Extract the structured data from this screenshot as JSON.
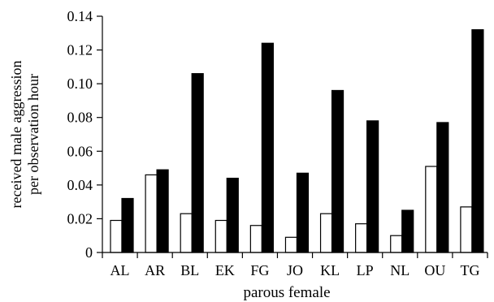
{
  "chart_data": {
    "type": "bar",
    "categories": [
      "AL",
      "AR",
      "BL",
      "EK",
      "FG",
      "JO",
      "KL",
      "LP",
      "NL",
      "OU",
      "TG"
    ],
    "series": [
      {
        "values": [
          0.019,
          0.046,
          0.023,
          0.019,
          0.016,
          0.009,
          0.023,
          0.017,
          0.01,
          0.051,
          0.027
        ]
      },
      {
        "values": [
          0.032,
          0.049,
          0.106,
          0.044,
          0.124,
          0.047,
          0.096,
          0.078,
          0.025,
          0.077,
          0.132
        ]
      }
    ],
    "series_colors": [
      "#ffffff",
      "#000000"
    ],
    "xlabel": "parous female",
    "ylabel_lines": [
      "received male aggression",
      "per observation hour"
    ],
    "ylim": [
      0,
      0.14
    ],
    "yticks": [
      {
        "value": 0,
        "label": "0"
      },
      {
        "value": 0.02,
        "label": "0.02"
      },
      {
        "value": 0.04,
        "label": "0.04"
      },
      {
        "value": 0.06,
        "label": "0.06"
      },
      {
        "value": 0.08,
        "label": "0.08"
      },
      {
        "value": 0.1,
        "label": "0.10"
      },
      {
        "value": 0.12,
        "label": "0.12"
      },
      {
        "value": 0.14,
        "label": "0.14"
      }
    ],
    "grid": false,
    "legend": "none"
  }
}
